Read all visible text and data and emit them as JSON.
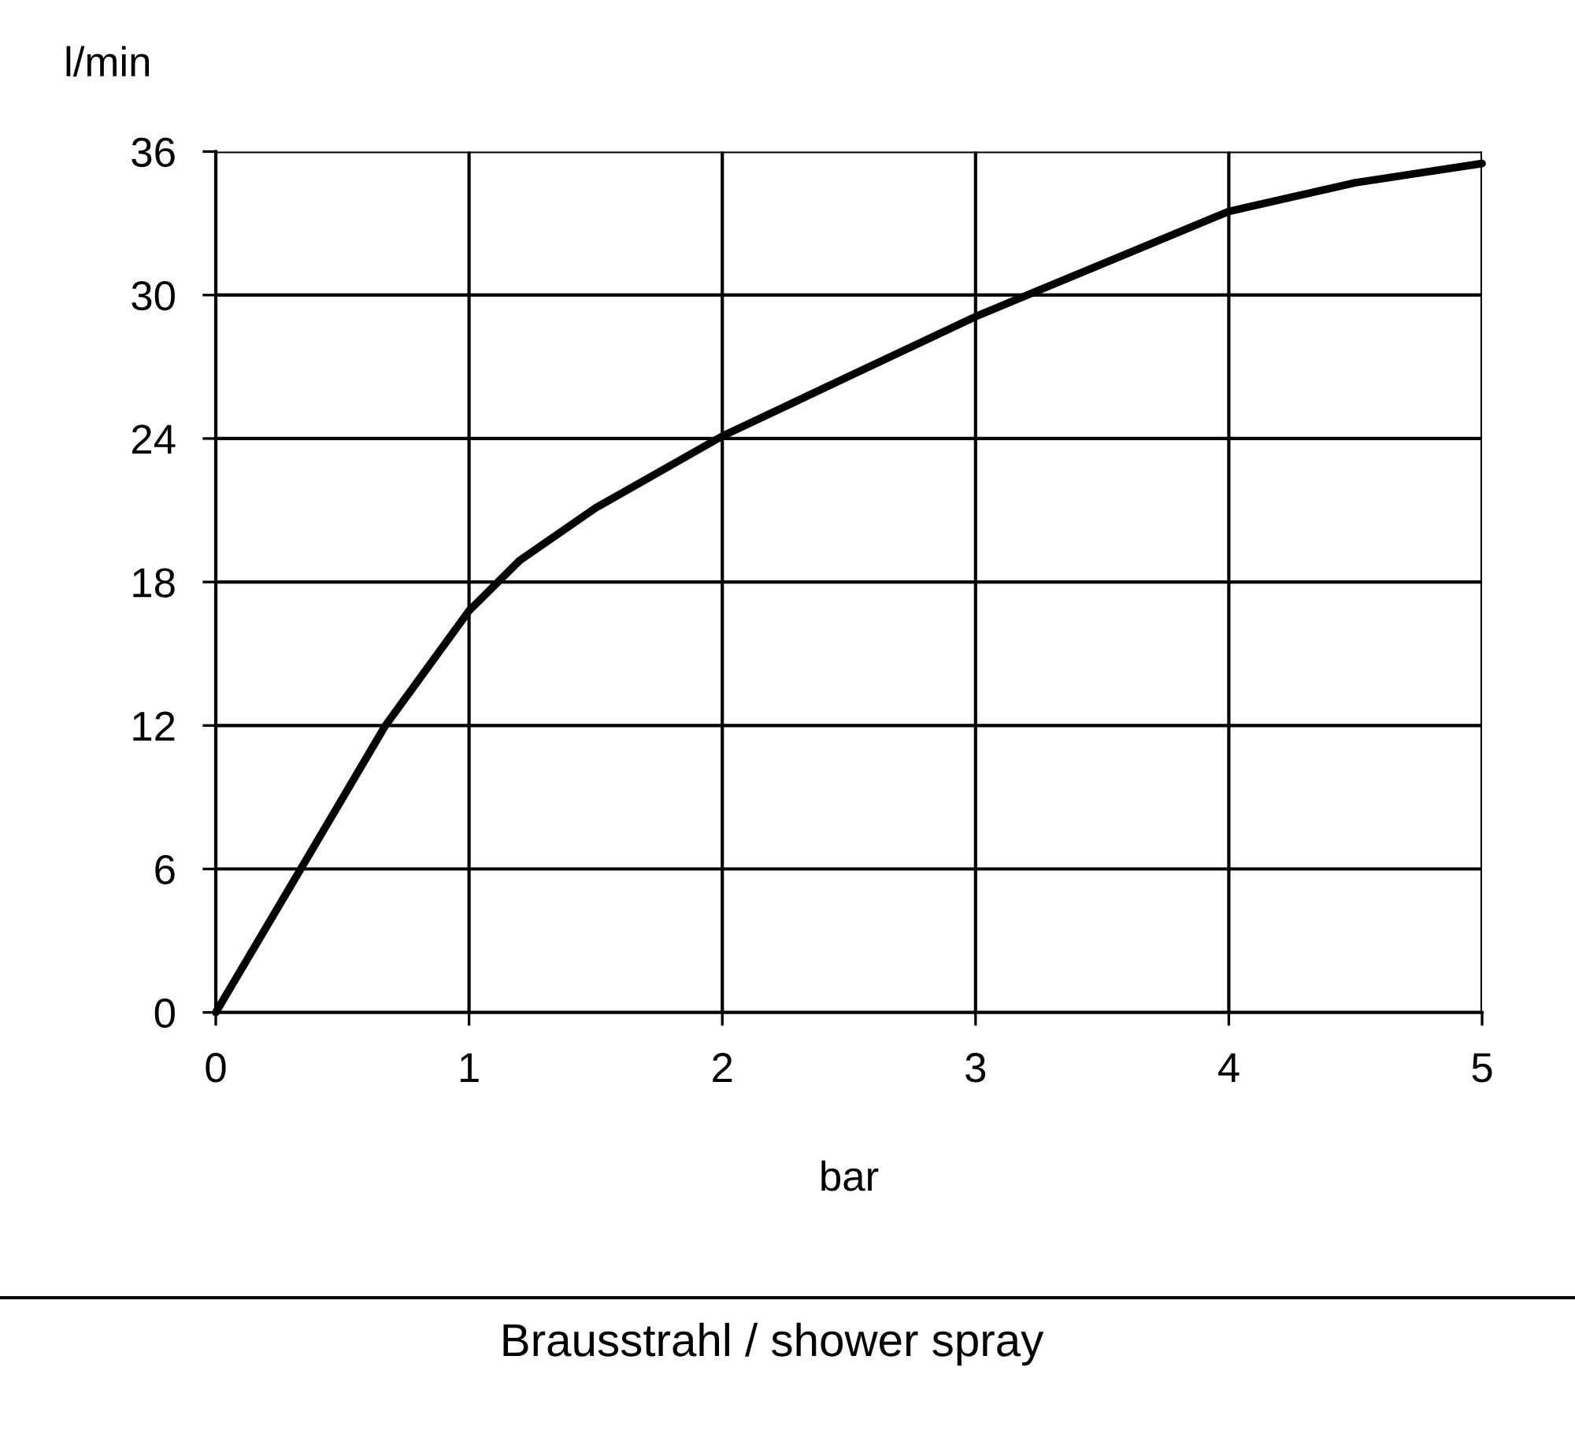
{
  "chart_data": {
    "type": "line",
    "title": "Brausstrahl / shower spray",
    "xlabel": "bar",
    "ylabel": "l/min",
    "x": [
      0,
      0.33,
      0.67,
      1,
      1.2,
      1.5,
      2,
      2.5,
      3,
      3.5,
      4,
      4.5,
      5
    ],
    "series": [
      {
        "color": "#000000",
        "values": [
          0,
          5.9,
          12,
          16.8,
          18.9,
          21.1,
          24.1,
          26.6,
          29.1,
          31.3,
          33.5,
          34.7,
          35.5
        ]
      }
    ],
    "xlim": [
      0,
      5
    ],
    "ylim": [
      0,
      36
    ],
    "xticks": [
      0,
      1,
      2,
      3,
      4,
      5
    ],
    "yticks": [
      0,
      6,
      12,
      18,
      24,
      30,
      36
    ],
    "grid": true,
    "marker": "none",
    "line_style": "solid",
    "legend": false
  }
}
